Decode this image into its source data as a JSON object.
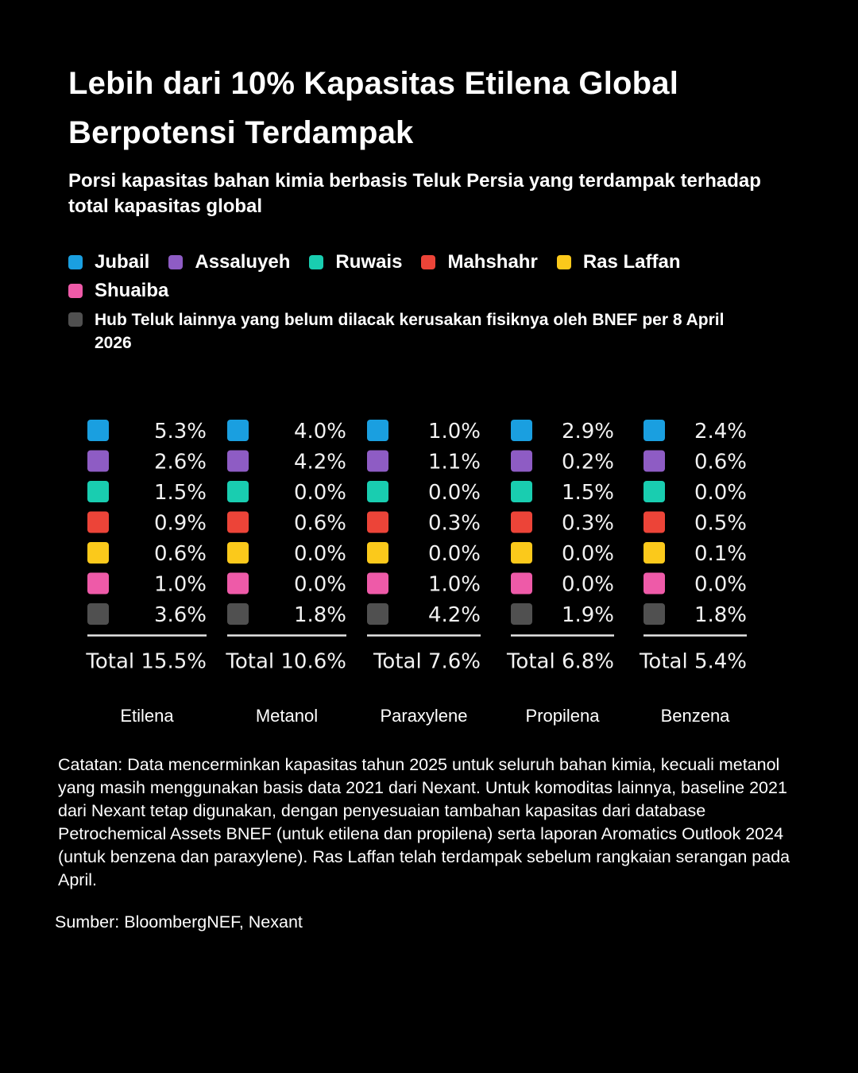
{
  "title": "Lebih dari 10% Kapasitas Etilena Global Berpotensi Terdampak",
  "subtitle": "Porsi kapasitas bahan kimia berbasis Teluk Persia yang terdampak terhadap total kapasitas global",
  "legend": {
    "items": [
      {
        "label": "Jubail",
        "color": "#1a9fe0"
      },
      {
        "label": "Assaluyeh",
        "color": "#8e5cc4"
      },
      {
        "label": "Ruwais",
        "color": "#19cdb0"
      },
      {
        "label": "Mahshahr",
        "color": "#ec4438"
      },
      {
        "label": "Ras Laffan",
        "color": "#fbc91b"
      },
      {
        "label": "Shuaiba",
        "color": "#ee5aa8"
      }
    ],
    "other": {
      "label": "Hub Teluk lainnya yang belum dilacak kerusakan fisiknya oleh BNEF per 8 April 2026",
      "color": "#505050"
    }
  },
  "chart_data": {
    "type": "table",
    "title": "Lebih dari 10% Kapasitas Etilena Global Berpotensi Terdampak",
    "subtitle": "Porsi kapasitas bahan kimia berbasis Teluk Persia yang terdampak terhadap total kapasitas global",
    "unit": "%",
    "rows": [
      "Jubail",
      "Assaluyeh",
      "Ruwais",
      "Mahshahr",
      "Ras Laffan",
      "Shuaiba",
      "Hub Teluk lainnya yang belum dilacak kerusakan fisiknya oleh BNEF per 8 April 2026"
    ],
    "colors": [
      "#1a9fe0",
      "#8e5cc4",
      "#19cdb0",
      "#ec4438",
      "#fbc91b",
      "#ee5aa8",
      "#505050"
    ],
    "columns": [
      {
        "category": "Etilena",
        "values": [
          "5.3%",
          "2.6%",
          "1.5%",
          "0.9%",
          "0.6%",
          "1.0%",
          "3.6%"
        ],
        "total": "Total 15.5%"
      },
      {
        "category": "Metanol",
        "values": [
          "4.0%",
          "4.2%",
          "0.0%",
          "0.6%",
          "0.0%",
          "0.0%",
          "1.8%"
        ],
        "total": "Total 10.6%"
      },
      {
        "category": "Paraxylene",
        "values": [
          "1.0%",
          "1.1%",
          "0.0%",
          "0.3%",
          "0.0%",
          "1.0%",
          "4.2%"
        ],
        "total": "Total 7.6%"
      },
      {
        "category": "Propilena",
        "values": [
          "2.9%",
          "0.2%",
          "1.5%",
          "0.3%",
          "0.0%",
          "0.0%",
          "1.9%"
        ],
        "total": "Total 6.8%"
      },
      {
        "category": "Benzena",
        "values": [
          "2.4%",
          "0.6%",
          "0.0%",
          "0.5%",
          "0.1%",
          "0.0%",
          "1.8%"
        ],
        "total": "Total 5.4%"
      }
    ]
  },
  "note": "Catatan: Data mencerminkan kapasitas tahun 2025 untuk seluruh bahan kimia, kecuali metanol yang masih menggunakan basis data 2021 dari Nexant. Untuk komoditas lainnya, baseline 2021 dari Nexant tetap digunakan, dengan penyesuaian tambahan kapasitas dari database Petrochemical Assets BNEF (untuk etilena dan propilena) serta laporan Aromatics Outlook 2024 (untuk benzena dan paraxylene). Ras Laffan telah terdampak sebelum rangkaian serangan pada April.",
  "source": "Sumber: BloombergNEF, Nexant"
}
